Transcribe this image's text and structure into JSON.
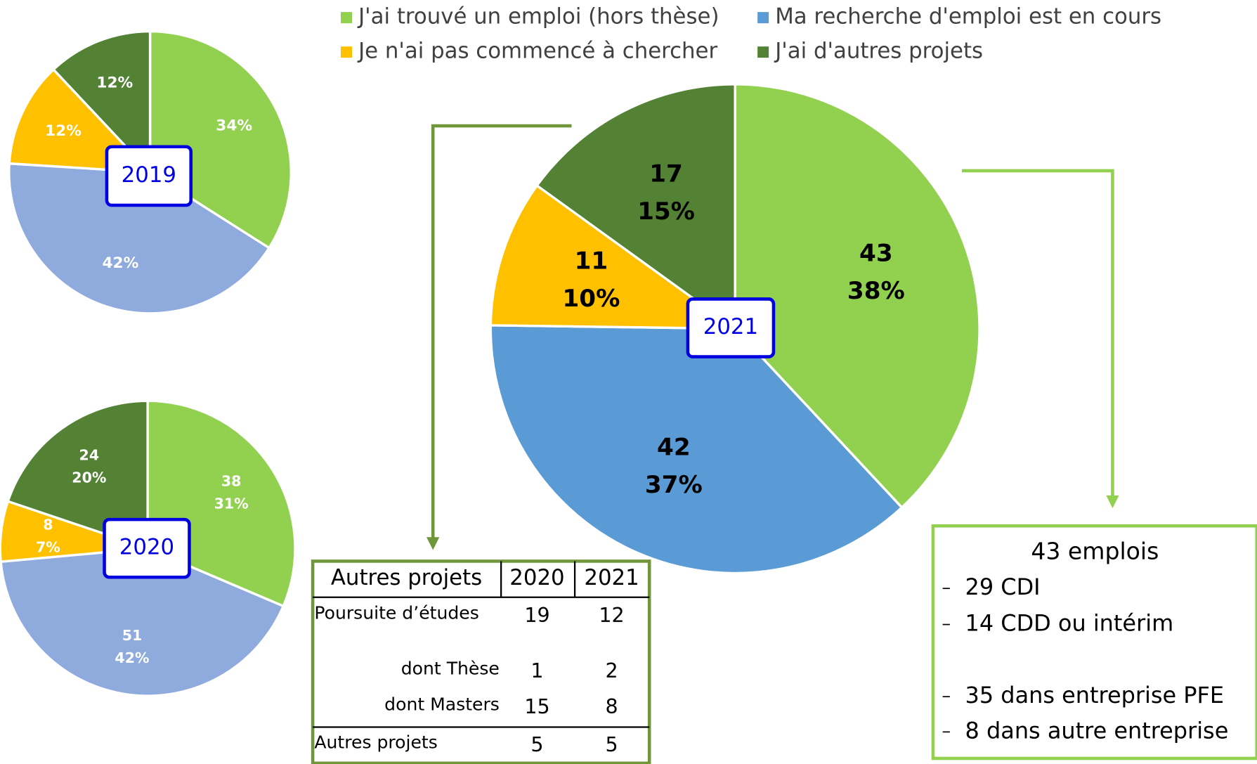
{
  "chart_data": [
    {
      "type": "pie",
      "title": "2019",
      "categories": [
        "J'ai trouvé un emploi (hors thèse)",
        "Ma recherche d'emploi est en cours",
        "Je n'ai pas commencé à chercher",
        "J'ai d'autres projets"
      ],
      "values": [
        34,
        42,
        12,
        12
      ],
      "value_labels": [
        "34%",
        "42%",
        "12%",
        "12%"
      ],
      "colors": [
        "#92d050",
        "#8faadc",
        "#ffc000",
        "#548235"
      ]
    },
    {
      "type": "pie",
      "title": "2020",
      "categories": [
        "J'ai trouvé un emploi (hors thèse)",
        "Ma recherche d'emploi est en cours",
        "Je n'ai pas commencé à chercher",
        "J'ai d'autres projets"
      ],
      "values": [
        38,
        51,
        8,
        24
      ],
      "percent_labels": [
        "31%",
        "42%",
        "7%",
        "20%"
      ],
      "colors": [
        "#92d050",
        "#8faadc",
        "#ffc000",
        "#548235"
      ]
    },
    {
      "type": "pie",
      "title": "2021",
      "categories": [
        "J'ai trouvé un emploi (hors thèse)",
        "Ma recherche d'emploi est en cours",
        "Je n'ai pas commencé à chercher",
        "J'ai d'autres projets"
      ],
      "values": [
        43,
        42,
        11,
        17
      ],
      "percent_labels": [
        "38%",
        "37%",
        "10%",
        "15%"
      ],
      "colors": [
        "#92d050",
        "#5b9bd5",
        "#ffc000",
        "#548235"
      ]
    }
  ],
  "legend": [
    {
      "name": "J'ai trouvé un emploi (hors thèse)",
      "color": "#92d050"
    },
    {
      "name": "Ma recherche d'emploi est en cours",
      "color": "#5b9bd5"
    },
    {
      "name": "Je n'ai pas commencé à chercher",
      "color": "#ffc000"
    },
    {
      "name": "J'ai d'autres projets",
      "color": "#548235"
    }
  ],
  "table": {
    "header": [
      "Autres projets",
      "2020",
      "2021"
    ],
    "rows": [
      [
        "Poursuite d’études",
        "19",
        "12"
      ],
      [
        "dont Thèse",
        "1",
        "2"
      ],
      [
        "dont Masters",
        "15",
        "8"
      ],
      [
        "Autres projets",
        "5",
        "5"
      ]
    ]
  },
  "box": {
    "title": "43 emplois",
    "items": [
      "29 CDI",
      "14 CDD ou intérim",
      "35 dans entreprise PFE",
      "8 dans autre entreprise"
    ]
  }
}
